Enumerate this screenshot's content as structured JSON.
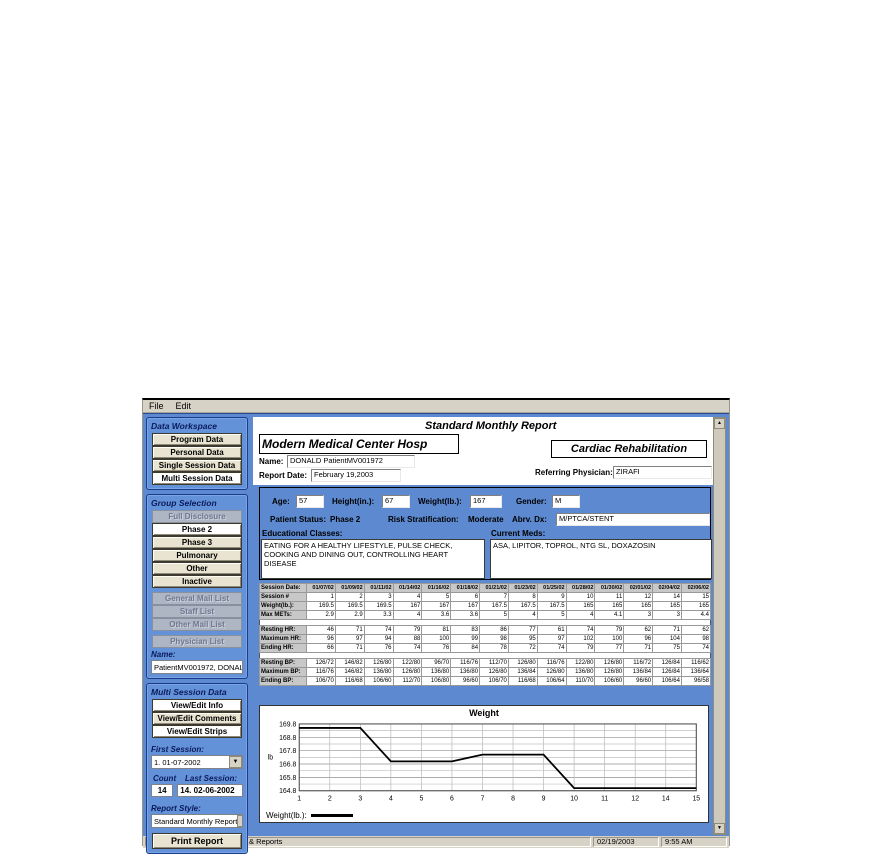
{
  "window": {
    "menu": [
      "File",
      "Edit"
    ]
  },
  "sidebar": {
    "data_workspace": {
      "title": "Data Workspace",
      "buttons": [
        {
          "label": "Program Data",
          "state": "normal"
        },
        {
          "label": "Personal Data",
          "state": "normal"
        },
        {
          "label": "Single Session Data",
          "state": "normal"
        },
        {
          "label": "Multi Session Data",
          "state": "selected"
        }
      ]
    },
    "group_selection": {
      "title": "Group Selection",
      "buttons": [
        {
          "label": "Full Disclosure",
          "state": "disabled"
        },
        {
          "label": "Phase 2",
          "state": "selected"
        },
        {
          "label": "Phase 3",
          "state": "normal"
        },
        {
          "label": "Pulmonary",
          "state": "normal"
        },
        {
          "label": "Other",
          "state": "normal"
        },
        {
          "label": "Inactive",
          "state": "normal"
        },
        {
          "label": "General Mail List",
          "state": "disabled",
          "gap_before": true
        },
        {
          "label": "Staff List",
          "state": "disabled"
        },
        {
          "label": "Other Mail List",
          "state": "disabled"
        },
        {
          "label": "Physician List",
          "state": "disabled",
          "gap_before": true
        }
      ],
      "name_label": "Name:",
      "name_value": "PatientMV001972, DONALD"
    },
    "multi_session": {
      "title": "Multi Session Data",
      "buttons": [
        {
          "label": "View/Edit Info",
          "state": "selected"
        },
        {
          "label": "View/Edit Comments",
          "state": "normal"
        },
        {
          "label": "View/Edit Strips",
          "state": "selected"
        }
      ],
      "first_session_label": "First Session:",
      "first_session_value": "1. 01-07-2002",
      "count_label": "Count",
      "count_value": "14",
      "last_session_label": "Last Session:",
      "last_session_value": "14. 02-06-2002",
      "report_style_label": "Report Style:",
      "report_style_value": "Standard Monthly Report",
      "print_button": "Print Report"
    }
  },
  "report": {
    "title": "Standard Monthly Report",
    "hospital": "Modern Medical Center Hosp",
    "department": "Cardiac Rehabilitation",
    "name_label": "Name:",
    "name_value": "DONALD PatientMV001972",
    "report_date_label": "Report Date:",
    "report_date_value": "February 19,2003",
    "referring_label": "Referring Physician:",
    "referring_value": "ZIRAFI",
    "demographics": {
      "age_label": "Age:",
      "age": "57",
      "height_label": "Height(in.):",
      "height": "67",
      "weight_label": "Weight(lb.):",
      "weight": "167",
      "gender_label": "Gender:",
      "gender": "M",
      "status_label": "Patient Status:",
      "status": "Phase 2",
      "risk_label": "Risk Stratification:",
      "risk": "Moderate",
      "dx_label": "Abrv. Dx:",
      "dx": "M/PTCA/STENT"
    },
    "educational_label": "Educational Classes:",
    "educational_value": "EATING FOR A HEALTHY LIFESTYLE, PULSE CHECK, COOKING AND DINING OUT, CONTROLLING HEART DISEASE",
    "meds_label": "Current Meds:",
    "meds_value": "ASA, LIPITOR, TOPROL, NTG SL, DOXAZOSIN"
  },
  "session_table": {
    "rows": [
      {
        "label": "Session Date:",
        "header": true,
        "values": [
          "01/07/02",
          "01/09/02",
          "01/11/02",
          "01/14/02",
          "01/16/02",
          "01/18/02",
          "01/21/02",
          "01/23/02",
          "01/25/02",
          "01/28/02",
          "01/30/02",
          "02/01/02",
          "02/04/02",
          "02/06/02"
        ]
      },
      {
        "label": "Session #",
        "values": [
          "1",
          "2",
          "3",
          "4",
          "5",
          "6",
          "7",
          "8",
          "9",
          "10",
          "11",
          "12",
          "14",
          "15"
        ]
      },
      {
        "label": "Weight(lb.):",
        "values": [
          "169.5",
          "169.5",
          "169.5",
          "167",
          "167",
          "167",
          "167.5",
          "167.5",
          "167.5",
          "165",
          "165",
          "165",
          "165",
          "165"
        ]
      },
      {
        "label": "Max METs:",
        "values": [
          "2.9",
          "2.9",
          "3.3",
          "4",
          "3.6",
          "3.6",
          "5",
          "4",
          "5",
          "4",
          "4.1",
          "3",
          "3",
          "4.4"
        ]
      },
      {
        "blank": true
      },
      {
        "label": "Resting HR:",
        "values": [
          "46",
          "71",
          "74",
          "79",
          "81",
          "83",
          "86",
          "77",
          "61",
          "74",
          "79",
          "62",
          "71",
          "62"
        ]
      },
      {
        "label": "Maximum HR:",
        "values": [
          "96",
          "97",
          "94",
          "88",
          "100",
          "99",
          "98",
          "95",
          "97",
          "102",
          "100",
          "96",
          "104",
          "98"
        ]
      },
      {
        "label": "Ending HR:",
        "values": [
          "66",
          "71",
          "76",
          "74",
          "76",
          "84",
          "78",
          "72",
          "74",
          "79",
          "77",
          "71",
          "75",
          "74"
        ]
      },
      {
        "blank": true
      },
      {
        "label": "Resting BP:",
        "values": [
          "126/72",
          "146/82",
          "126/80",
          "122/80",
          "96/70",
          "116/76",
          "112/70",
          "126/80",
          "116/76",
          "122/80",
          "126/80",
          "116/72",
          "126/84",
          "116/62"
        ]
      },
      {
        "label": "Maximum BP:",
        "values": [
          "116/76",
          "146/82",
          "136/80",
          "126/80",
          "136/80",
          "136/80",
          "126/80",
          "136/84",
          "126/80",
          "136/80",
          "126/80",
          "136/84",
          "126/84",
          "136/64"
        ]
      },
      {
        "label": "Ending BP:",
        "values": [
          "106/70",
          "116/68",
          "106/60",
          "112/70",
          "106/80",
          "96/60",
          "106/70",
          "116/68",
          "106/64",
          "110/70",
          "106/60",
          "96/60",
          "106/64",
          "96/58"
        ]
      }
    ]
  },
  "chart_data": {
    "type": "line",
    "title": "Weight",
    "ylabel": "lb",
    "legend_label": "Weight(lb.):",
    "x_labels": [
      "1",
      "2",
      "3",
      "4",
      "5",
      "6",
      "7",
      "8",
      "9",
      "10",
      "11",
      "12",
      "14",
      "15"
    ],
    "values": [
      169.5,
      169.5,
      169.5,
      167,
      167,
      167,
      167.5,
      167.5,
      167.5,
      165,
      165,
      165,
      165,
      165
    ],
    "ylim": [
      164.8,
      169.8
    ],
    "yticks": [
      169.8,
      168.8,
      167.8,
      166.8,
      165.8,
      164.8
    ],
    "grid": true,
    "line_color": "#000000",
    "legend_position": "bottom-left"
  },
  "status_bar": {
    "left": "Patient Multiple Session Data & Reports",
    "date": "02/19/2003",
    "time": "9:55 AM"
  }
}
